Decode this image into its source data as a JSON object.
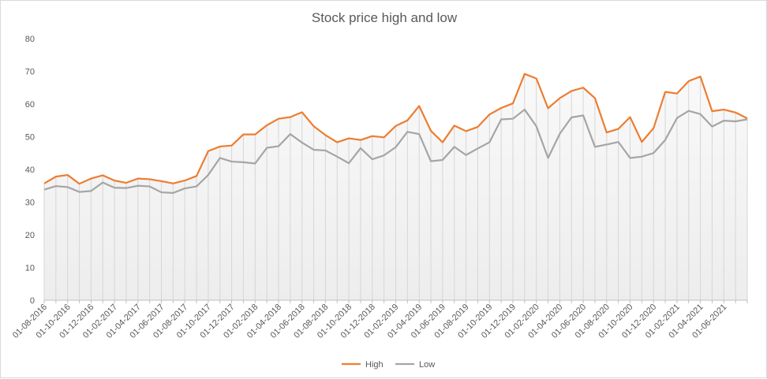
{
  "chart_data": {
    "type": "line",
    "title": "Stock price high and low",
    "xlabel": "",
    "ylabel": "",
    "ylim": [
      0,
      80
    ],
    "yticks": [
      0,
      10,
      20,
      30,
      40,
      50,
      60,
      70,
      80
    ],
    "grid": false,
    "legend": "bottom",
    "x": [
      "01-08-2016",
      "01-09-2016",
      "01-10-2016",
      "01-11-2016",
      "01-12-2016",
      "01-01-2017",
      "01-02-2017",
      "01-03-2017",
      "01-04-2017",
      "01-05-2017",
      "01-06-2017",
      "01-07-2017",
      "01-08-2017",
      "01-09-2017",
      "01-10-2017",
      "01-11-2017",
      "01-12-2017",
      "01-01-2018",
      "01-02-2018",
      "01-03-2018",
      "01-04-2018",
      "01-05-2018",
      "01-06-2018",
      "01-07-2018",
      "01-08-2018",
      "01-09-2018",
      "01-10-2018",
      "01-11-2018",
      "01-12-2018",
      "01-01-2019",
      "01-02-2019",
      "01-03-2019",
      "01-04-2019",
      "01-05-2019",
      "01-06-2019",
      "01-07-2019",
      "01-08-2019",
      "01-09-2019",
      "01-10-2019",
      "01-11-2019",
      "01-12-2019",
      "01-01-2020",
      "01-02-2020",
      "01-03-2020",
      "01-04-2020",
      "01-05-2020",
      "01-06-2020",
      "01-07-2020",
      "01-08-2020",
      "01-09-2020",
      "01-10-2020",
      "01-11-2020",
      "01-12-2020",
      "01-01-2021",
      "01-02-2021",
      "01-03-2021",
      "01-04-2021",
      "01-05-2021",
      "01-06-2021",
      "01-07-2021",
      "01-08-2021"
    ],
    "x_tick_labels": [
      "01-08-2016",
      "01-10-2016",
      "01-12-2016",
      "01-02-2017",
      "01-04-2017",
      "01-06-2017",
      "01-08-2017",
      "01-10-2017",
      "01-12-2017",
      "01-02-2018",
      "01-04-2018",
      "01-06-2018",
      "01-08-2018",
      "01-10-2018",
      "01-12-2018",
      "01-02-2019",
      "01-04-2019",
      "01-06-2019",
      "01-08-2019",
      "01-10-2019",
      "01-12-2019",
      "01-02-2020",
      "01-04-2020",
      "01-06-2020",
      "01-08-2020",
      "01-10-2020",
      "01-12-2020",
      "01-02-2021",
      "01-04-2021",
      "01-06-2021"
    ],
    "series": [
      {
        "name": "High",
        "color": "#ED7D31",
        "values": [
          35.7,
          37.8,
          38.3,
          35.6,
          37.2,
          38.2,
          36.6,
          35.9,
          37.2,
          37.0,
          36.4,
          35.7,
          36.6,
          38.0,
          45.6,
          47.0,
          47.3,
          50.7,
          50.7,
          53.5,
          55.5,
          56.0,
          57.5,
          53.2,
          50.5,
          48.3,
          49.5,
          49.0,
          50.2,
          49.8,
          53.3,
          55.0,
          59.4,
          51.8,
          48.3,
          53.4,
          51.7,
          53.0,
          56.8,
          58.8,
          60.2,
          69.2,
          67.8,
          58.7,
          61.8,
          64.0,
          65.0,
          61.8,
          51.3,
          52.4,
          56.0,
          48.4,
          52.6,
          63.7,
          63.2,
          67.0,
          68.4,
          57.8,
          58.3,
          57.4,
          55.6
        ]
      },
      {
        "name": "Low",
        "color": "#A5A5A5",
        "values": [
          33.8,
          34.9,
          34.6,
          33.1,
          33.4,
          36.0,
          34.4,
          34.3,
          35.0,
          34.8,
          33.0,
          32.8,
          34.2,
          34.8,
          38.3,
          43.5,
          42.4,
          42.2,
          41.8,
          46.6,
          47.1,
          50.8,
          48.2,
          46.0,
          45.8,
          43.9,
          41.9,
          46.5,
          43.1,
          44.3,
          46.8,
          51.5,
          50.8,
          42.5,
          42.9,
          46.9,
          44.4,
          46.4,
          48.3,
          55.3,
          55.5,
          58.3,
          53.2,
          43.5,
          50.9,
          55.9,
          56.5,
          46.9,
          47.6,
          48.4,
          43.5,
          43.9,
          45.0,
          49.0,
          55.7,
          57.9,
          56.9,
          53.1,
          54.9,
          54.7,
          55.3
        ]
      }
    ]
  }
}
